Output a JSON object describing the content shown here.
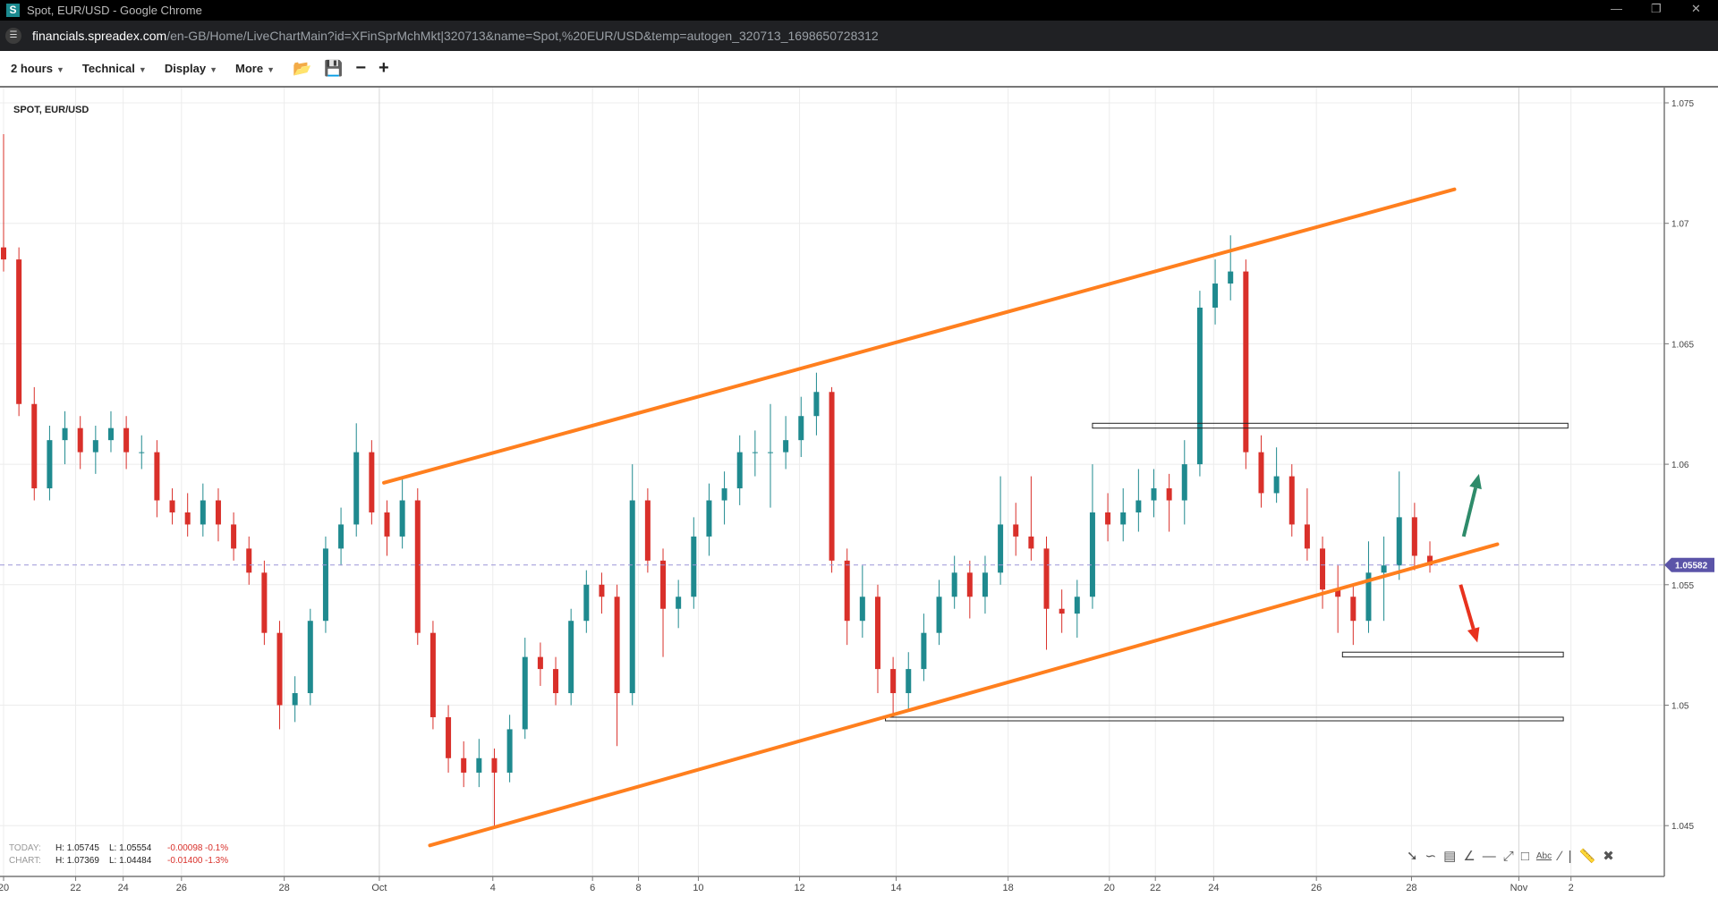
{
  "window": {
    "title": "Spot, EUR/USD - Google Chrome",
    "favicon": "S"
  },
  "address": {
    "host": "financials.spreadex.com",
    "path": "/en-GB/Home/LiveChartMain?id=XFinSprMchMkt|320713&name=Spot,%20EUR/USD&temp=autogen_320713_1698650728312"
  },
  "toolbar": {
    "interval": "2 hours",
    "technical": "Technical",
    "display": "Display",
    "more": "More",
    "icons": [
      "folder-open-icon",
      "save-icon",
      "zoom-out-icon",
      "zoom-in-icon"
    ]
  },
  "symbol": "SPOT, EUR/USD",
  "stats": {
    "today": {
      "label": "TODAY:",
      "high": "H: 1.05745",
      "low": "L: 1.05554",
      "change": "-0.00098",
      "pct": "-0.1%"
    },
    "chart": {
      "label": "CHART:",
      "high": "H: 1.07369",
      "low": "L: 1.04484",
      "change": "-0.01400",
      "pct": "-1.3%"
    }
  },
  "draw_tools": [
    "arrow-icon",
    "curve-icon",
    "fibonacci-icon",
    "fan-icon",
    "horizontal-line-icon",
    "trend-line-icon",
    "rectangle-icon",
    "text-icon",
    "line-icon",
    "vertical-line-icon",
    "ruler-icon",
    "close-icon"
  ],
  "draw_tools_text": {
    "text": "Abc"
  },
  "colors": {
    "up": "#1f8a8f",
    "down": "#d9302a",
    "channel": "#ff7f1e",
    "last": "#5b54a8",
    "arrow_up": "#2e8b6a",
    "arrow_down": "#e8321e"
  },
  "chart_data": {
    "type": "candlestick",
    "interval": "2 hours",
    "y_ticks": [
      "1.075",
      "1.07",
      "1.065",
      "1.06",
      "1.055",
      "1.05",
      "1.045"
    ],
    "ylim": [
      1.0443,
      1.0757
    ],
    "last_price": "1.05582",
    "x_ticks": [
      {
        "label": "20",
        "bar": 0
      },
      {
        "label": "22",
        "bar": 4.7
      },
      {
        "label": "24",
        "bar": 7.8
      },
      {
        "label": "26",
        "bar": 11.6
      },
      {
        "label": "28",
        "bar": 18.3
      },
      {
        "label": "Oct",
        "bar": 24.5
      },
      {
        "label": "4",
        "bar": 31.9
      },
      {
        "label": "6",
        "bar": 38.4
      },
      {
        "label": "8",
        "bar": 41.4
      },
      {
        "label": "10",
        "bar": 45.3
      },
      {
        "label": "12",
        "bar": 51.9
      },
      {
        "label": "14",
        "bar": 58.2
      },
      {
        "label": "18",
        "bar": 65.5
      },
      {
        "label": "20",
        "bar": 72.1
      },
      {
        "label": "22",
        "bar": 75.1
      },
      {
        "label": "24",
        "bar": 78.9
      },
      {
        "label": "26",
        "bar": 85.6
      },
      {
        "label": "28",
        "bar": 91.8
      },
      {
        "label": "Nov",
        "bar": 98.8
      },
      {
        "label": "2",
        "bar": 102.2
      }
    ],
    "candles": [
      [
        1.069,
        1.0737,
        1.068,
        1.0685
      ],
      [
        1.0685,
        1.069,
        1.062,
        1.0625
      ],
      [
        1.0625,
        1.0632,
        1.0585,
        1.059
      ],
      [
        1.059,
        1.0616,
        1.0585,
        1.061
      ],
      [
        1.061,
        1.0622,
        1.06,
        1.0615
      ],
      [
        1.0615,
        1.062,
        1.0598,
        1.0605
      ],
      [
        1.0605,
        1.0616,
        1.0596,
        1.061
      ],
      [
        1.061,
        1.0622,
        1.0605,
        1.0615
      ],
      [
        1.0615,
        1.062,
        1.0598,
        1.0605
      ],
      [
        1.0605,
        1.0612,
        1.0598,
        1.0605
      ],
      [
        1.0605,
        1.061,
        1.0578,
        1.0585
      ],
      [
        1.0585,
        1.059,
        1.0575,
        1.058
      ],
      [
        1.058,
        1.0588,
        1.057,
        1.0575
      ],
      [
        1.0575,
        1.0592,
        1.057,
        1.0585
      ],
      [
        1.0585,
        1.059,
        1.0568,
        1.0575
      ],
      [
        1.0575,
        1.058,
        1.056,
        1.0565
      ],
      [
        1.0565,
        1.057,
        1.055,
        1.0555
      ],
      [
        1.0555,
        1.056,
        1.0525,
        1.053
      ],
      [
        1.053,
        1.0535,
        1.049,
        1.05
      ],
      [
        1.05,
        1.0512,
        1.0493,
        1.0505
      ],
      [
        1.0505,
        1.054,
        1.05,
        1.0535
      ],
      [
        1.0535,
        1.057,
        1.053,
        1.0565
      ],
      [
        1.0565,
        1.0582,
        1.0558,
        1.0575
      ],
      [
        1.0575,
        1.0617,
        1.057,
        1.0605
      ],
      [
        1.0605,
        1.061,
        1.0575,
        1.058
      ],
      [
        1.058,
        1.0585,
        1.0562,
        1.057
      ],
      [
        1.057,
        1.0594,
        1.0565,
        1.0585
      ],
      [
        1.0585,
        1.059,
        1.0525,
        1.053
      ],
      [
        1.053,
        1.0535,
        1.049,
        1.0495
      ],
      [
        1.0495,
        1.05,
        1.0472,
        1.0478
      ],
      [
        1.0478,
        1.0485,
        1.0466,
        1.0472
      ],
      [
        1.0472,
        1.0486,
        1.0466,
        1.0478
      ],
      [
        1.0478,
        1.0482,
        1.045,
        1.0472
      ],
      [
        1.0472,
        1.0496,
        1.0468,
        1.049
      ],
      [
        1.049,
        1.0528,
        1.0486,
        1.052
      ],
      [
        1.052,
        1.0526,
        1.0508,
        1.0515
      ],
      [
        1.0515,
        1.052,
        1.05,
        1.0505
      ],
      [
        1.0505,
        1.054,
        1.05,
        1.0535
      ],
      [
        1.0535,
        1.0556,
        1.053,
        1.055
      ],
      [
        1.055,
        1.0555,
        1.0538,
        1.0545
      ],
      [
        1.0545,
        1.055,
        1.0483,
        1.0505
      ],
      [
        1.0505,
        1.06,
        1.05,
        1.0585
      ],
      [
        1.0585,
        1.059,
        1.0555,
        1.056
      ],
      [
        1.056,
        1.0565,
        1.052,
        1.054
      ],
      [
        1.054,
        1.0552,
        1.0532,
        1.0545
      ],
      [
        1.0545,
        1.0578,
        1.054,
        1.057
      ],
      [
        1.057,
        1.0592,
        1.0562,
        1.0585
      ],
      [
        1.0585,
        1.0597,
        1.0575,
        1.059
      ],
      [
        1.059,
        1.0612,
        1.0583,
        1.0605
      ],
      [
        1.0605,
        1.0614,
        1.0595,
        1.0605
      ],
      [
        1.0605,
        1.0625,
        1.0582,
        1.0605
      ],
      [
        1.0605,
        1.062,
        1.0598,
        1.061
      ],
      [
        1.061,
        1.0628,
        1.0603,
        1.062
      ],
      [
        1.062,
        1.0638,
        1.0612,
        1.063
      ],
      [
        1.063,
        1.0632,
        1.0555,
        1.056
      ],
      [
        1.056,
        1.0565,
        1.0525,
        1.0535
      ],
      [
        1.0535,
        1.0558,
        1.0528,
        1.0545
      ],
      [
        1.0545,
        1.055,
        1.0505,
        1.0515
      ],
      [
        1.0515,
        1.052,
        1.0495,
        1.0505
      ],
      [
        1.0505,
        1.0522,
        1.0498,
        1.0515
      ],
      [
        1.0515,
        1.0538,
        1.051,
        1.053
      ],
      [
        1.053,
        1.0552,
        1.0525,
        1.0545
      ],
      [
        1.0545,
        1.0562,
        1.054,
        1.0555
      ],
      [
        1.0555,
        1.056,
        1.0536,
        1.0545
      ],
      [
        1.0545,
        1.0562,
        1.0538,
        1.0555
      ],
      [
        1.0555,
        1.0595,
        1.055,
        1.0575
      ],
      [
        1.0575,
        1.0584,
        1.0562,
        1.057
      ],
      [
        1.057,
        1.0595,
        1.056,
        1.0565
      ],
      [
        1.0565,
        1.057,
        1.0523,
        1.054
      ],
      [
        1.054,
        1.0548,
        1.053,
        1.0538
      ],
      [
        1.0538,
        1.0552,
        1.0528,
        1.0545
      ],
      [
        1.0545,
        1.06,
        1.054,
        1.058
      ],
      [
        1.058,
        1.0588,
        1.0568,
        1.0575
      ],
      [
        1.0575,
        1.059,
        1.0568,
        1.058
      ],
      [
        1.058,
        1.0598,
        1.0572,
        1.0585
      ],
      [
        1.0585,
        1.0598,
        1.0578,
        1.059
      ],
      [
        1.059,
        1.0596,
        1.0572,
        1.0585
      ],
      [
        1.0585,
        1.061,
        1.0575,
        1.06
      ],
      [
        1.06,
        1.0672,
        1.0595,
        1.0665
      ],
      [
        1.0665,
        1.0685,
        1.0658,
        1.0675
      ],
      [
        1.0675,
        1.0695,
        1.0668,
        1.068
      ],
      [
        1.068,
        1.0685,
        1.0598,
        1.0605
      ],
      [
        1.0605,
        1.0612,
        1.0582,
        1.0588
      ],
      [
        1.0588,
        1.0607,
        1.0584,
        1.0595
      ],
      [
        1.0595,
        1.06,
        1.057,
        1.0575
      ],
      [
        1.0575,
        1.059,
        1.056,
        1.0565
      ],
      [
        1.0565,
        1.057,
        1.054,
        1.0548
      ],
      [
        1.0548,
        1.0558,
        1.053,
        1.0545
      ],
      [
        1.0545,
        1.055,
        1.0525,
        1.0535
      ],
      [
        1.0535,
        1.0568,
        1.053,
        1.0555
      ],
      [
        1.0555,
        1.057,
        1.0535,
        1.0558
      ],
      [
        1.0558,
        1.0597,
        1.0552,
        1.0578
      ],
      [
        1.0578,
        1.0584,
        1.0556,
        1.0562
      ],
      [
        1.0562,
        1.0568,
        1.0555,
        1.0558
      ]
    ],
    "drawings": {
      "trend_lines": [
        {
          "from": [
            24.8,
            1.05923
          ],
          "to": [
            94.6,
            1.07141
          ]
        },
        {
          "from": [
            27.8,
            1.04418
          ],
          "to": [
            97.4,
            1.05668
          ]
        }
      ],
      "rectangles": [
        {
          "from": [
            71.0,
            1.0617
          ],
          "to": [
            102.0,
            1.0615
          ]
        },
        {
          "from": [
            87.3,
            1.0522
          ],
          "to": [
            101.7,
            1.052
          ]
        },
        {
          "from": [
            57.5,
            1.0495
          ],
          "to": [
            101.7,
            1.04935
          ]
        }
      ],
      "arrows": [
        {
          "from": [
            95.2,
            1.057
          ],
          "to": [
            96.2,
            1.0596
          ],
          "color": "arrow_up"
        },
        {
          "from": [
            95.0,
            1.055
          ],
          "to": [
            96.1,
            1.0526
          ],
          "color": "arrow_down"
        }
      ]
    }
  }
}
